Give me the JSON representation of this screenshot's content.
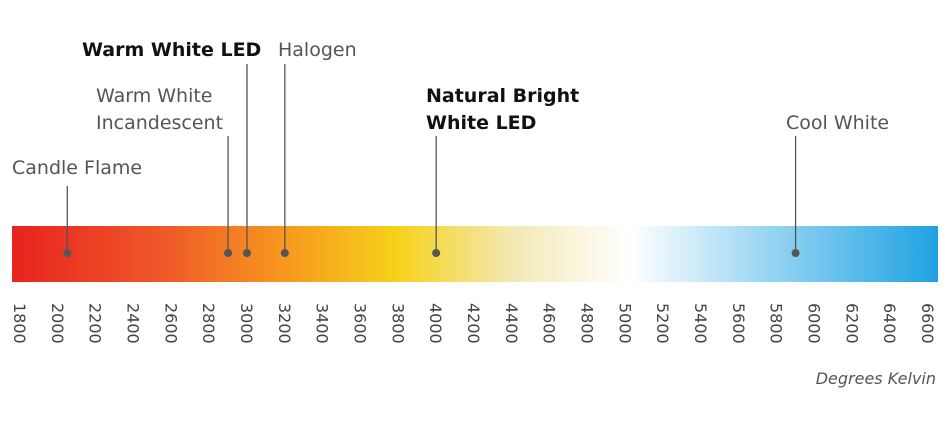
{
  "chart_data": {
    "type": "color-temperature-scale",
    "unit_label": "Degrees Kelvin",
    "x_range": [
      1800,
      6600
    ],
    "ticks": [
      1800,
      2000,
      2200,
      2400,
      2600,
      2800,
      3000,
      3200,
      3400,
      3600,
      3800,
      4000,
      4200,
      4400,
      4600,
      4800,
      5000,
      5200,
      5400,
      5600,
      5800,
      6000,
      6200,
      6400,
      6600
    ],
    "gradient_stops": [
      {
        "kelvin": 1800,
        "color": "#e8231f"
      },
      {
        "kelvin": 2600,
        "color": "#ef5a2a"
      },
      {
        "kelvin": 3200,
        "color": "#f7971e"
      },
      {
        "kelvin": 3800,
        "color": "#f6d21b"
      },
      {
        "kelvin": 4400,
        "color": "#f3e9b5"
      },
      {
        "kelvin": 5000,
        "color": "#ffffff"
      },
      {
        "kelvin": 5600,
        "color": "#a9dcf5"
      },
      {
        "kelvin": 6600,
        "color": "#1ea2e2"
      }
    ],
    "markers": [
      {
        "lines": [
          "Candle Flame"
        ],
        "kelvin": 2050,
        "bold": false
      },
      {
        "lines": [
          "Warm White",
          "Incandescent"
        ],
        "kelvin": 2900,
        "bold": false
      },
      {
        "lines": [
          "Warm White LED"
        ],
        "kelvin": 3000,
        "bold": true
      },
      {
        "lines": [
          "Halogen"
        ],
        "kelvin": 3200,
        "bold": false
      },
      {
        "lines": [
          "Natural Bright",
          "White LED"
        ],
        "kelvin": 4000,
        "bold": true
      },
      {
        "lines": [
          "Cool White"
        ],
        "kelvin": 5900,
        "bold": false
      }
    ]
  }
}
